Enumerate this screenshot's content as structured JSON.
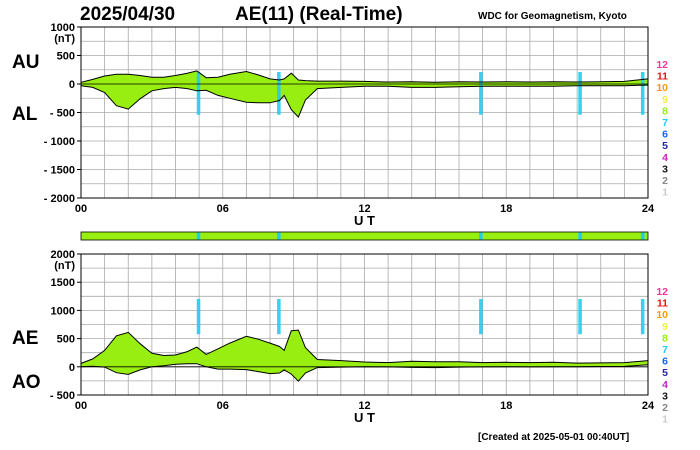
{
  "header": {
    "date": "2025/04/30",
    "title": "AE(11) (Real-Time)",
    "source": "WDC for Geomagnetism, Kyoto"
  },
  "footer": {
    "created": "[Created at 2025-05-01 00:40UT]"
  },
  "colors": {
    "fill": "#99ee11",
    "gap": "#22ccee",
    "grid": "#aaaaaa"
  },
  "station_legend": [
    {
      "label": "12",
      "color": "#ff3399"
    },
    {
      "label": "11",
      "color": "#ee1111"
    },
    {
      "label": "10",
      "color": "#ff9900"
    },
    {
      "label": "9",
      "color": "#eeee44"
    },
    {
      "label": "8",
      "color": "#99ee11"
    },
    {
      "label": "7",
      "color": "#22ccee"
    },
    {
      "label": "6",
      "color": "#1166ee"
    },
    {
      "label": "5",
      "color": "#2222aa"
    },
    {
      "label": "4",
      "color": "#cc22cc"
    },
    {
      "label": "3",
      "color": "#111111"
    },
    {
      "label": "2",
      "color": "#888888"
    },
    {
      "label": "1",
      "color": "#cccccc"
    }
  ],
  "chart_data": [
    {
      "type": "area",
      "ylabel": "(nT)",
      "xlabel": "U T",
      "xlim": [
        0,
        24
      ],
      "ylim": [
        -2000,
        1000
      ],
      "yticks": [
        1000,
        500,
        0,
        -500,
        -1000,
        -1500,
        -2000
      ],
      "ytick_labels": [
        "1000",
        "500",
        "0",
        "- 500",
        "- 1000",
        "- 1500",
        "- 2000"
      ],
      "xticks": [
        0,
        6,
        12,
        18,
        24
      ],
      "xtick_labels": [
        "00",
        "06",
        "12",
        "18",
        "24"
      ],
      "grid": true,
      "series": [
        {
          "name": "AU",
          "x": [
            0,
            0.5,
            1,
            1.5,
            2,
            2.5,
            3,
            3.5,
            4,
            4.5,
            4.9,
            5.3,
            5.8,
            6.3,
            7,
            7.5,
            8,
            8.4,
            8.6,
            8.9,
            9.2,
            9.5,
            10,
            11,
            12,
            13,
            14,
            15,
            16,
            17,
            18,
            19,
            20,
            21,
            22,
            23,
            24
          ],
          "values": [
            30,
            80,
            140,
            170,
            170,
            150,
            120,
            120,
            150,
            190,
            230,
            110,
            120,
            170,
            220,
            160,
            90,
            70,
            90,
            190,
            70,
            60,
            50,
            50,
            45,
            35,
            40,
            30,
            40,
            35,
            40,
            35,
            40,
            35,
            40,
            45,
            90
          ]
        },
        {
          "name": "AL",
          "x": [
            0,
            0.5,
            1,
            1.5,
            2,
            2.5,
            3,
            3.5,
            4,
            4.5,
            4.9,
            5.3,
            5.8,
            6.3,
            7,
            7.5,
            8,
            8.4,
            8.6,
            8.9,
            9.2,
            9.5,
            10,
            11,
            12,
            13,
            14,
            15,
            16,
            17,
            18,
            19,
            20,
            21,
            22,
            23,
            24
          ],
          "values": [
            -30,
            -60,
            -150,
            -380,
            -440,
            -260,
            -120,
            -80,
            -60,
            -80,
            -120,
            -110,
            -200,
            -250,
            -320,
            -330,
            -330,
            -290,
            -200,
            -450,
            -580,
            -280,
            -80,
            -60,
            -40,
            -40,
            -60,
            -60,
            -50,
            -40,
            -40,
            -40,
            -40,
            -30,
            -30,
            -30,
            -20
          ]
        }
      ]
    },
    {
      "type": "area",
      "ylabel": "(nT)",
      "xlabel": "U T",
      "xlim": [
        0,
        24
      ],
      "ylim": [
        -500,
        2000
      ],
      "yticks": [
        2000,
        1500,
        1000,
        500,
        0,
        -500
      ],
      "ytick_labels": [
        "2000",
        "1500",
        "1000",
        "500",
        "0",
        "- 500"
      ],
      "xticks": [
        0,
        6,
        12,
        18,
        24
      ],
      "xtick_labels": [
        "00",
        "06",
        "12",
        "18",
        "24"
      ],
      "grid": true,
      "series": [
        {
          "name": "AE",
          "x": [
            0,
            0.5,
            1,
            1.5,
            2,
            2.5,
            3,
            3.5,
            4,
            4.5,
            4.9,
            5.3,
            5.8,
            6.3,
            7,
            7.5,
            8,
            8.4,
            8.6,
            8.9,
            9.2,
            9.5,
            10,
            11,
            12,
            13,
            14,
            15,
            16,
            17,
            18,
            19,
            20,
            21,
            22,
            23,
            24
          ],
          "values": [
            60,
            140,
            290,
            550,
            610,
            410,
            240,
            200,
            210,
            270,
            350,
            220,
            320,
            420,
            540,
            490,
            420,
            360,
            290,
            640,
            650,
            340,
            130,
            110,
            85,
            75,
            100,
            90,
            90,
            75,
            80,
            75,
            80,
            65,
            70,
            75,
            110
          ]
        },
        {
          "name": "AO",
          "x": [
            0,
            0.5,
            1,
            1.5,
            2,
            2.5,
            3,
            3.5,
            4,
            4.5,
            4.9,
            5.3,
            5.8,
            6.3,
            7,
            7.5,
            8,
            8.4,
            8.6,
            8.9,
            9.2,
            9.5,
            10,
            11,
            12,
            13,
            14,
            15,
            16,
            17,
            18,
            19,
            20,
            21,
            22,
            23,
            24
          ],
          "values": [
            0,
            10,
            -5,
            -105,
            -135,
            -55,
            0,
            20,
            45,
            55,
            55,
            0,
            -40,
            -40,
            -50,
            -85,
            -120,
            -110,
            -55,
            -130,
            -255,
            -110,
            -15,
            -5,
            2,
            -2,
            -10,
            -15,
            -5,
            -2,
            0,
            -2,
            0,
            2,
            5,
            7,
            35
          ]
        }
      ],
      "gap_bar": {
        "gaps_ut": [
          [
            4.9,
            5.05
          ],
          [
            8.3,
            8.45
          ],
          [
            16.85,
            17.0
          ],
          [
            21.05,
            21.2
          ],
          [
            23.7,
            23.85
          ]
        ]
      }
    }
  ]
}
